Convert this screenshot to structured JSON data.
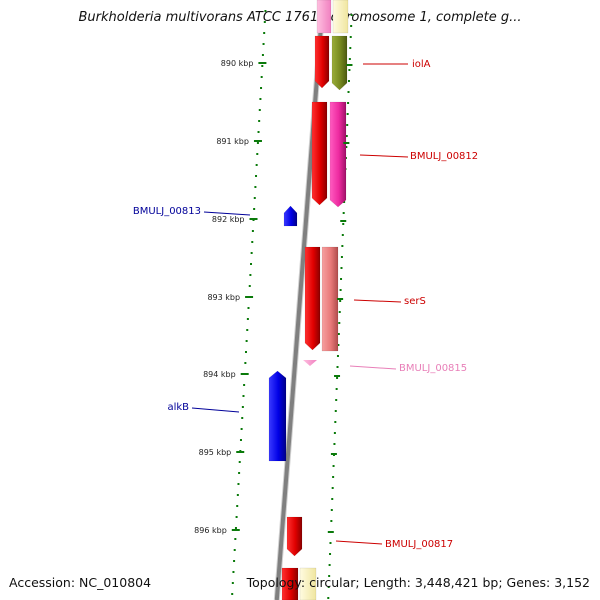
{
  "title": "Burkholderia multivorans ATCC 17616 chromosome 1, complete g...",
  "footer": {
    "accession": "Accession: NC_010804",
    "summary": "Topology: circular; Length: 3,448,421 bp; Genes: 3,152"
  },
  "colors": {
    "backbone": "#808080",
    "tick": "#0a7a0a",
    "forward_label": "#cc0000",
    "reverse_label": "#000099",
    "pink_label": "#e87fb8"
  },
  "ticks": [
    {
      "label": "890 kbp"
    },
    {
      "label": "891 kbp"
    },
    {
      "label": "892 kbp"
    },
    {
      "label": "893 kbp"
    },
    {
      "label": "894 kbp"
    },
    {
      "label": "895 kbp"
    },
    {
      "label": "896 kbp"
    }
  ],
  "genes": [
    {
      "label": "iolA",
      "strand": "forward",
      "color": "#cc0000"
    },
    {
      "label": "BMULJ_00812",
      "strand": "forward",
      "color": "#cc0000"
    },
    {
      "label": "BMULJ_00813",
      "strand": "reverse",
      "color": "#000099"
    },
    {
      "label": "serS",
      "strand": "forward",
      "color": "#cc0000"
    },
    {
      "label": "BMULJ_00815",
      "strand": "forward",
      "color": "#e87fb8"
    },
    {
      "label": "alkB",
      "strand": "reverse",
      "color": "#000099"
    },
    {
      "label": "BMULJ_00817",
      "strand": "forward",
      "color": "#cc0000"
    }
  ]
}
